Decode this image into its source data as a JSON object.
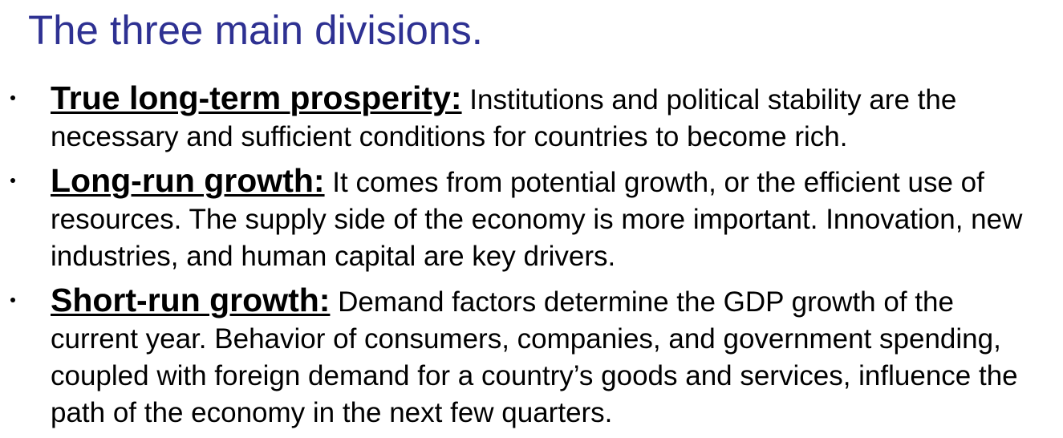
{
  "slide": {
    "title": "The three main divisions.",
    "bullets": [
      {
        "term": "True long-term prosperity:",
        "text": " Institutions and political stability are the necessary and sufficient conditions for countries to become rich."
      },
      {
        "term": "Long-run growth:",
        "text": " It comes from potential growth, or the efficient use of resources. The supply side of the economy is more important. Innovation, new industries, and human capital are key drivers."
      },
      {
        "term": "Short-run growth:",
        "text": " Demand factors determine the GDP growth of the current year. Behavior of consumers, companies, and government spending, coupled with foreign demand for a country’s goods and services, influence the path of the economy in the next few quarters."
      }
    ]
  },
  "colors": {
    "title": "#2e3192",
    "body_text": "#000000",
    "background": "#ffffff"
  }
}
